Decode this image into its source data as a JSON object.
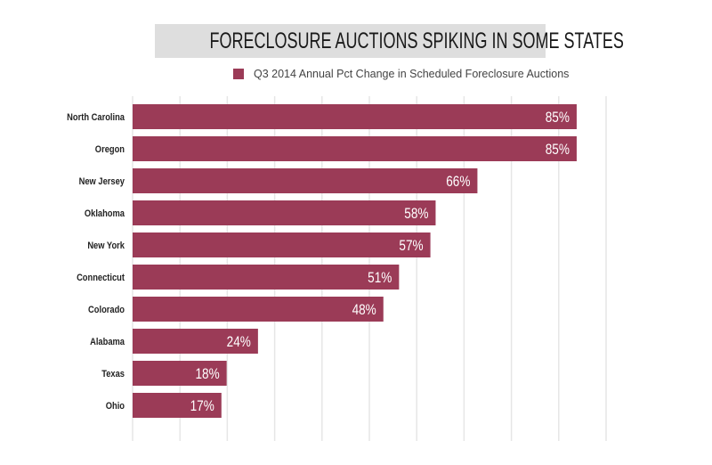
{
  "colors": {
    "bar": "#9b3b57",
    "title_bg": "#dedede",
    "grid": "#e6e6e6"
  },
  "chart_data": {
    "type": "bar",
    "orientation": "horizontal",
    "title": "FORECLOSURE AUCTIONS SPIKING IN SOME STATES",
    "legend": [
      "Q3 2014 Annual Pct Change in Scheduled Foreclosure Auctions"
    ],
    "legend_position": "top",
    "categories": [
      "North Carolina",
      "Oregon",
      "New Jersey",
      "Oklahoma",
      "New York",
      "Connecticut",
      "Colorado",
      "Alabama",
      "Texas",
      "Ohio"
    ],
    "values": [
      85,
      85,
      66,
      58,
      57,
      51,
      48,
      24,
      18,
      17
    ],
    "data_labels": [
      "85%",
      "85%",
      "66%",
      "58%",
      "57%",
      "51%",
      "48%",
      "24%",
      "18%",
      "17%"
    ],
    "xlim": [
      0,
      94
    ],
    "grid": true,
    "xlabel": "",
    "ylabel": ""
  }
}
